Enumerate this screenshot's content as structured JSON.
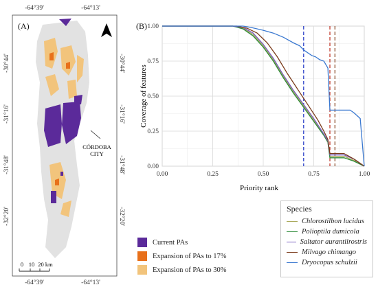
{
  "map": {
    "panel_label": "(A)",
    "top_coords": [
      "-64°39'",
      "-64°13'"
    ],
    "bottom_coords": [
      "-64°39'",
      "-64°13'"
    ],
    "left_coords": [
      "-30°44'",
      "-31°16'",
      "-31°48'",
      "-32°20'"
    ],
    "right_coords": [
      "-30°44'",
      "-31°16'",
      "-31°48'",
      "-32°20'"
    ],
    "city_label_line1": "CÓRDOBA",
    "city_label_line2": "CITY",
    "scale_labels": [
      "0",
      "10",
      "20 km"
    ],
    "legend": [
      {
        "label": "Current PAs",
        "color": "#5b2a9a"
      },
      {
        "label": "Expansion of PAs to 17%",
        "color": "#e8701a"
      },
      {
        "label": "Expansion of PAs to 30%",
        "color": "#f2c47c"
      }
    ],
    "colors": {
      "region": "#e2e2e2",
      "north_arrow": "#000000"
    }
  },
  "chart_data": {
    "type": "line",
    "panel_label": "(B)",
    "xlabel": "Priority rank",
    "ylabel": "Coverage of features",
    "xlim": [
      0,
      1
    ],
    "ylim": [
      0,
      1
    ],
    "x_ticks": [
      "0.00",
      "0.25",
      "0.50",
      "0.75",
      "1.00"
    ],
    "y_ticks": [
      "0.00",
      "0.25",
      "0.50",
      "0.75",
      "1.00"
    ],
    "grid": true,
    "legend_title": "Species",
    "legend_position": "bottom-right outside",
    "reference_lines": [
      {
        "x": 0.7,
        "color": "#2a3fc8",
        "style": "dashed"
      },
      {
        "x": 0.83,
        "color": "#c0392b",
        "style": "dashed"
      },
      {
        "x": 0.855,
        "color": "#8a4a2a",
        "style": "dashed"
      }
    ],
    "series": [
      {
        "name": "Chlorostilbon lucidus",
        "color": "#a8a85a",
        "x": [
          0,
          0.35,
          0.4,
          0.45,
          0.5,
          0.55,
          0.6,
          0.65,
          0.7,
          0.75,
          0.8,
          0.82,
          0.83,
          0.86,
          0.9,
          0.95,
          1.0
        ],
        "y": [
          1.0,
          1.0,
          0.985,
          0.94,
          0.86,
          0.76,
          0.64,
          0.53,
          0.43,
          0.33,
          0.22,
          0.17,
          0.07,
          0.07,
          0.07,
          0.04,
          0.0
        ]
      },
      {
        "name": "Polioptila dumicola",
        "color": "#2e8b3a",
        "x": [
          0,
          0.35,
          0.4,
          0.45,
          0.5,
          0.55,
          0.6,
          0.65,
          0.7,
          0.75,
          0.8,
          0.82,
          0.83,
          0.86,
          0.9,
          0.95,
          1.0
        ],
        "y": [
          1.0,
          1.0,
          0.98,
          0.93,
          0.85,
          0.75,
          0.63,
          0.52,
          0.42,
          0.32,
          0.22,
          0.17,
          0.06,
          0.06,
          0.06,
          0.035,
          0.0
        ]
      },
      {
        "name": "Saltator aurantiirostris",
        "color": "#7a5fc0",
        "x": [
          0,
          0.35,
          0.4,
          0.45,
          0.5,
          0.55,
          0.6,
          0.65,
          0.7,
          0.75,
          0.8,
          0.82,
          0.83,
          0.86,
          0.9,
          0.95,
          1.0
        ],
        "y": [
          1.0,
          1.0,
          0.99,
          0.95,
          0.87,
          0.77,
          0.65,
          0.54,
          0.44,
          0.34,
          0.23,
          0.18,
          0.08,
          0.08,
          0.08,
          0.05,
          0.0
        ]
      },
      {
        "name": "Milvago chimango",
        "color": "#7a3a1a",
        "x": [
          0,
          0.37,
          0.42,
          0.47,
          0.52,
          0.57,
          0.62,
          0.67,
          0.72,
          0.77,
          0.8,
          0.82,
          0.83,
          0.86,
          0.9,
          0.95,
          1.0
        ],
        "y": [
          1.0,
          1.0,
          0.985,
          0.95,
          0.88,
          0.78,
          0.66,
          0.55,
          0.44,
          0.33,
          0.25,
          0.19,
          0.09,
          0.09,
          0.09,
          0.05,
          0.0
        ]
      },
      {
        "name": "Dryocopus schulzii",
        "color": "#3a78d0",
        "x": [
          0,
          0.4,
          0.44,
          0.5,
          0.55,
          0.6,
          0.65,
          0.68,
          0.7,
          0.72,
          0.74,
          0.76,
          0.78,
          0.8,
          0.82,
          0.83,
          0.86,
          0.9,
          0.93,
          0.95,
          0.98,
          1.0
        ],
        "y": [
          1.0,
          1.0,
          0.99,
          0.97,
          0.95,
          0.92,
          0.88,
          0.86,
          0.83,
          0.81,
          0.79,
          0.78,
          0.76,
          0.75,
          0.7,
          0.4,
          0.4,
          0.4,
          0.4,
          0.38,
          0.34,
          0.0
        ]
      }
    ]
  }
}
